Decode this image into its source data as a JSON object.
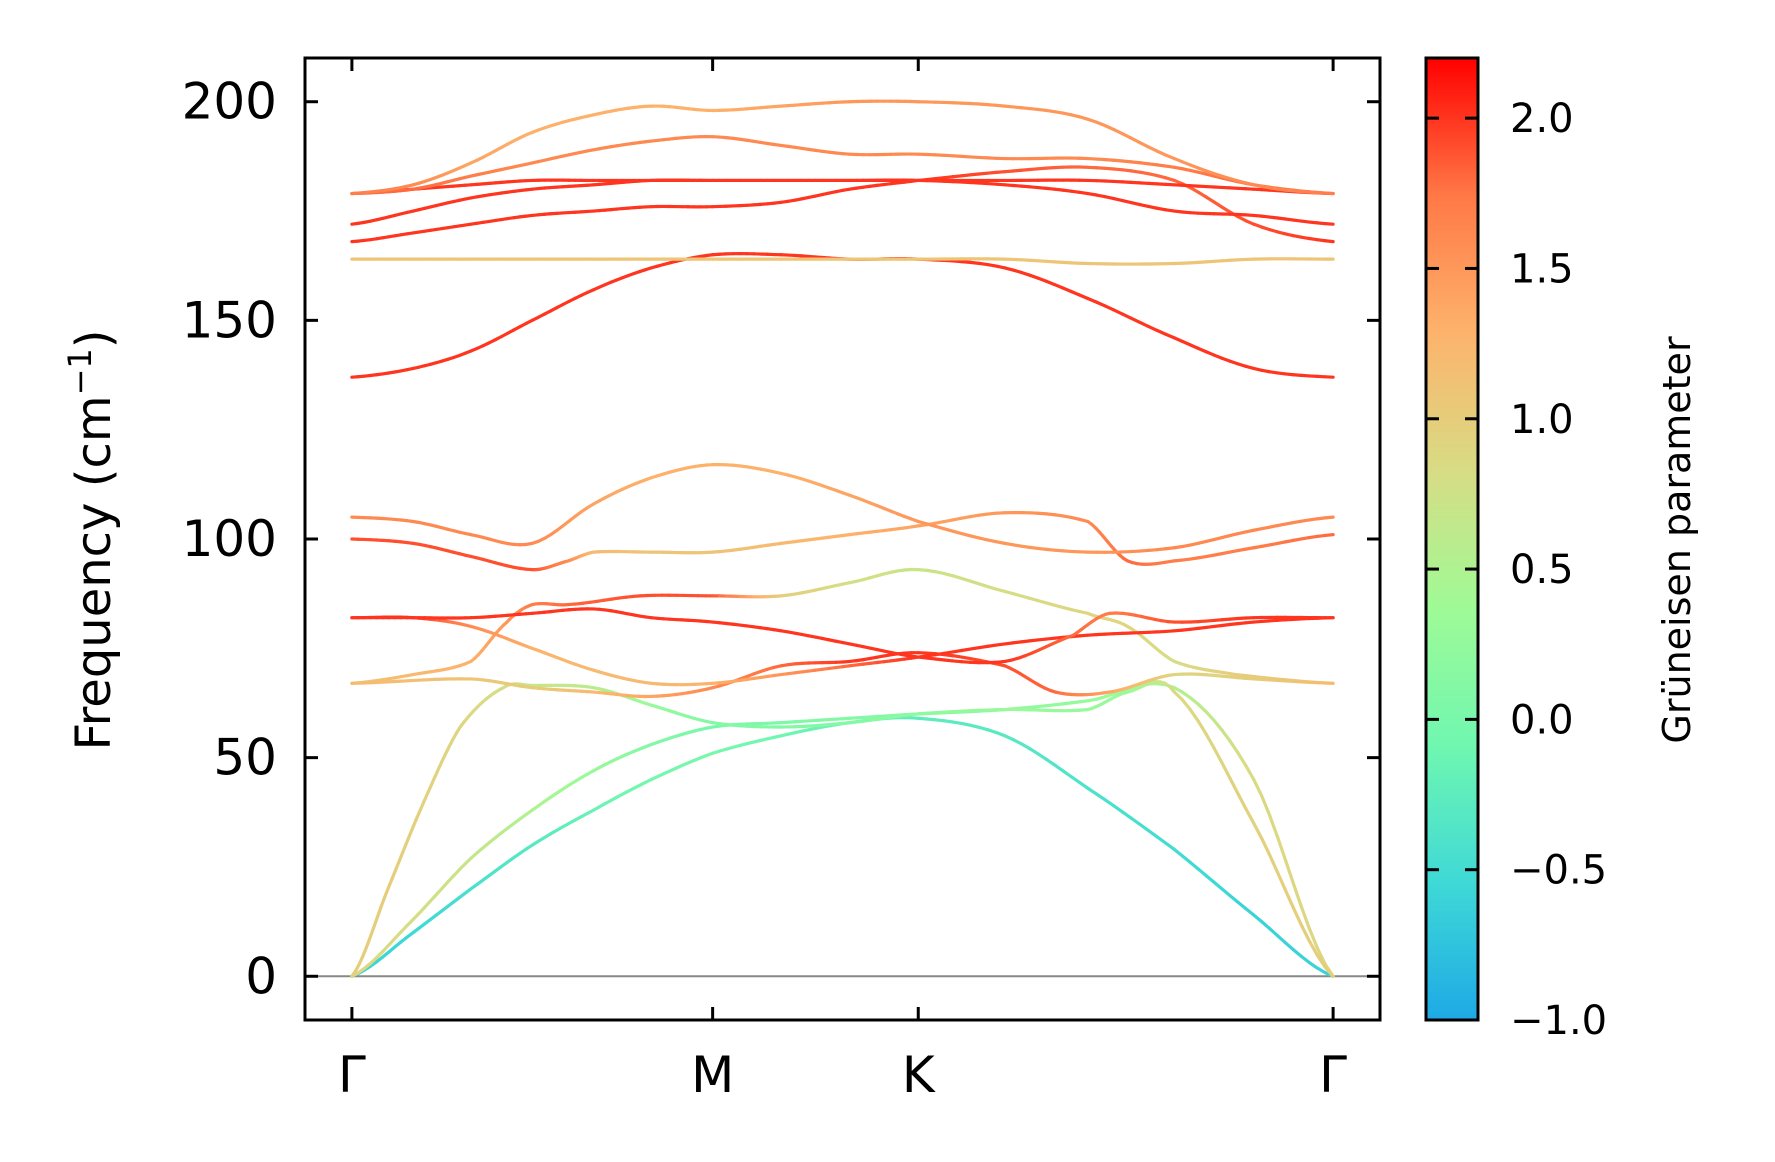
{
  "chart_data": {
    "type": "line",
    "ylabel": "Frequency (cm",
    "ylabel_sup": "−1",
    "ylabel_end": ")",
    "ylim": [
      -10,
      210
    ],
    "yticks": [
      0,
      50,
      100,
      150,
      200
    ],
    "ytick_labels": [
      "0",
      "50",
      "100",
      "150",
      "200"
    ],
    "x_segments": [
      0,
      1,
      1.57,
      2.72
    ],
    "xtick_labels": [
      "Γ",
      "M",
      "K",
      "Γ"
    ],
    "xlim": [
      -0.13,
      2.85
    ],
    "zero_line": true,
    "colorbar": {
      "label": "Grüneisen parameter",
      "min": -1.0,
      "max": 2.2,
      "ticks": [
        -1.0,
        -0.5,
        0.0,
        0.5,
        1.0,
        1.5,
        2.0
      ],
      "tick_labels": [
        "−1.0",
        "−0.5",
        "0.0",
        "0.5",
        "1.0",
        "1.5",
        "2.0"
      ],
      "colormap": "rainbow",
      "colors": [
        "#1ea9e6",
        "#3fd9d6",
        "#70f7b0",
        "#9ffa96",
        "#d8dc84",
        "#fdb36c",
        "#ff7846",
        "#ff0000"
      ]
    },
    "series": [
      {
        "x": [
          0,
          0.17,
          0.33,
          0.5,
          0.67,
          0.83,
          1,
          1.19,
          1.38,
          1.57,
          1.81,
          2.04,
          2.28,
          2.5,
          2.72
        ],
        "y": [
          0,
          10,
          20,
          30,
          38,
          45,
          51,
          55,
          58,
          59,
          55,
          43,
          29,
          14,
          0
        ],
        "g": [
          -0.6,
          -0.55,
          -0.45,
          -0.3,
          -0.15,
          -0.05,
          0,
          -0.1,
          -0.2,
          -0.25,
          -0.3,
          -0.4,
          -0.5,
          -0.6,
          -0.6
        ]
      },
      {
        "x": [
          0,
          0.17,
          0.33,
          0.5,
          0.67,
          0.83,
          1,
          1.19,
          1.38,
          1.57,
          1.81,
          2.04,
          2.28,
          2.5,
          2.72
        ],
        "y": [
          0,
          13,
          27,
          38,
          47,
          53,
          57,
          58,
          59,
          60,
          61,
          63,
          66,
          45,
          0
        ],
        "g": [
          0.9,
          0.8,
          0.7,
          0.5,
          0.3,
          0.1,
          0,
          0.05,
          0.1,
          0.1,
          0.2,
          0.3,
          0.5,
          0.85,
          0.9
        ]
      },
      {
        "x": [
          0,
          0.1,
          0.2,
          0.3,
          0.42,
          0.5,
          0.67,
          0.83,
          1,
          1.19,
          1.38,
          1.57,
          1.81,
          2.04,
          2.15,
          2.28,
          2.5,
          2.72
        ],
        "y": [
          0,
          20,
          40,
          57,
          66,
          66.5,
          66,
          62,
          58,
          57,
          58,
          60,
          61,
          61,
          65,
          65,
          35,
          0
        ],
        "g": [
          1.0,
          1.0,
          0.95,
          0.9,
          0.8,
          0.7,
          0.6,
          0.3,
          0.1,
          0.1,
          0.1,
          0.2,
          0.3,
          0.3,
          0.3,
          0.85,
          0.95,
          1.0
        ]
      },
      {
        "x": [
          0,
          0.17,
          0.33,
          0.43,
          0.5,
          0.6,
          0.8,
          1,
          1.19,
          1.38,
          1.57,
          1.81,
          2.04,
          2.15,
          2.28,
          2.45,
          2.72
        ],
        "y": [
          67,
          69,
          72,
          81,
          85,
          85,
          87,
          87,
          87,
          90,
          93,
          88,
          83,
          80,
          72,
          69,
          67
        ],
        "g": [
          1.1,
          1.2,
          1.3,
          1.5,
          1.7,
          1.8,
          1.9,
          1.9,
          1.0,
          0.8,
          0.7,
          0.8,
          0.9,
          0.9,
          0.8,
          1.0,
          1.1
        ]
      },
      {
        "x": [
          0,
          0.33,
          0.5,
          0.67,
          0.83,
          1,
          1.19,
          1.38,
          1.57,
          1.81,
          1.95,
          2.1,
          2.28,
          2.5,
          2.72
        ],
        "y": [
          67,
          68,
          66,
          65,
          64,
          66,
          71,
          72,
          74,
          71,
          65,
          65,
          69,
          68,
          67
        ],
        "g": [
          1.2,
          1.1,
          1.0,
          1.2,
          1.4,
          1.6,
          1.8,
          2.0,
          2.0,
          1.9,
          1.8,
          1.4,
          0.9,
          1.0,
          1.2
        ]
      },
      {
        "x": [
          0,
          0.17,
          0.33,
          0.5,
          0.67,
          0.83,
          1,
          1.19,
          1.38,
          1.57,
          1.81,
          2.04,
          2.28,
          2.5,
          2.72
        ],
        "y": [
          82,
          82,
          80,
          75,
          70,
          67,
          67,
          69,
          71,
          73,
          76,
          78,
          79,
          81,
          82
        ],
        "g": [
          2.0,
          2.0,
          1.6,
          1.3,
          1.2,
          1.2,
          1.3,
          1.5,
          1.8,
          2.0,
          2.0,
          2.0,
          2.0,
          2.0,
          2.0
        ]
      },
      {
        "x": [
          0,
          0.17,
          0.33,
          0.5,
          0.67,
          0.83,
          1,
          1.19,
          1.38,
          1.57,
          1.81,
          2.0,
          2.1,
          2.28,
          2.5,
          2.72
        ],
        "y": [
          82,
          82,
          82,
          83,
          84,
          82,
          81,
          79,
          76,
          73,
          72,
          78,
          83,
          81,
          82,
          82
        ],
        "g": [
          2.0,
          2.0,
          2.0,
          2.0,
          2.0,
          2.0,
          2.0,
          2.0,
          2.0,
          2.0,
          2.0,
          1.8,
          1.7,
          1.9,
          2.0,
          2.0
        ]
      },
      {
        "x": [
          0,
          0.17,
          0.33,
          0.5,
          0.6,
          0.67,
          0.83,
          1,
          1.19,
          1.38,
          1.57,
          1.81,
          2.04,
          2.15,
          2.28,
          2.5,
          2.72
        ],
        "y": [
          100,
          99,
          96,
          93,
          95,
          97,
          97,
          97,
          99,
          101,
          103,
          106,
          104,
          95,
          95,
          98,
          101
        ],
        "g": [
          1.9,
          1.9,
          1.9,
          1.9,
          1.6,
          1.2,
          1.1,
          1.1,
          1.2,
          1.3,
          1.4,
          1.5,
          1.6,
          1.8,
          1.7,
          1.7,
          1.8
        ]
      },
      {
        "x": [
          0,
          0.17,
          0.33,
          0.5,
          0.67,
          0.83,
          1,
          1.19,
          1.38,
          1.57,
          1.81,
          2.04,
          2.28,
          2.5,
          2.72
        ],
        "y": [
          105,
          104,
          101,
          99,
          108,
          114,
          117,
          115,
          110,
          104,
          99,
          97,
          98,
          102,
          105
        ],
        "g": [
          1.6,
          1.6,
          1.6,
          1.6,
          1.4,
          1.3,
          1.3,
          1.3,
          1.4,
          1.5,
          1.5,
          1.5,
          1.6,
          1.6,
          1.6
        ]
      },
      {
        "x": [
          0,
          0.17,
          0.33,
          0.5,
          0.67,
          0.83,
          1,
          1.19,
          1.38,
          1.57,
          1.81,
          2.04,
          2.28,
          2.5,
          2.72
        ],
        "y": [
          137,
          139,
          143,
          150,
          157,
          162,
          165,
          165,
          164,
          164,
          162,
          155,
          146,
          139,
          137
        ],
        "g": [
          2.0,
          2.0,
          2.0,
          2.0,
          2.0,
          2.0,
          2.0,
          2.0,
          2.0,
          2.0,
          2.0,
          2.0,
          2.0,
          2.0,
          2.0
        ]
      },
      {
        "x": [
          0,
          0.33,
          0.67,
          1,
          1.38,
          1.57,
          1.81,
          2.04,
          2.28,
          2.5,
          2.72
        ],
        "y": [
          164,
          164,
          164,
          164,
          164,
          164,
          164,
          163,
          163,
          164,
          164
        ],
        "g": [
          1.1,
          1.1,
          1.1,
          1.1,
          1.1,
          1.1,
          1.1,
          1.1,
          1.1,
          1.1,
          1.1
        ]
      },
      {
        "x": [
          0,
          0.17,
          0.33,
          0.5,
          0.67,
          0.83,
          1,
          1.19,
          1.38,
          1.57,
          1.81,
          2.04,
          2.28,
          2.5,
          2.72
        ],
        "y": [
          168,
          170,
          172,
          174,
          175,
          176,
          176,
          177,
          180,
          182,
          184,
          185,
          182,
          172,
          168
        ],
        "g": [
          2.0,
          2.0,
          2.0,
          2.0,
          2.0,
          2.0,
          2.0,
          2.0,
          2.0,
          2.0,
          1.9,
          1.8,
          1.8,
          1.9,
          2.0
        ]
      },
      {
        "x": [
          0,
          0.17,
          0.33,
          0.5,
          0.67,
          0.83,
          1,
          1.19,
          1.38,
          1.57,
          1.81,
          2.04,
          2.28,
          2.5,
          2.72
        ],
        "y": [
          172,
          175,
          178,
          180,
          181,
          182,
          182,
          182,
          182,
          182,
          181,
          179,
          175,
          174,
          172
        ],
        "g": [
          2.0,
          2.0,
          2.0,
          2.0,
          2.0,
          2.0,
          2.0,
          2.0,
          2.0,
          2.0,
          2.0,
          2.0,
          2.0,
          2.0,
          2.0
        ]
      },
      {
        "x": [
          0,
          0.17,
          0.33,
          0.5,
          0.67,
          0.83,
          1,
          1.19,
          1.38,
          1.57,
          1.81,
          2.04,
          2.28,
          2.5,
          2.72
        ],
        "y": [
          179,
          180,
          181,
          182,
          182,
          182,
          182,
          182,
          182,
          182,
          182,
          182,
          181,
          180,
          179
        ],
        "g": [
          2.0,
          2.0,
          2.0,
          2.0,
          2.0,
          2.0,
          2.0,
          2.0,
          2.0,
          2.0,
          2.0,
          2.0,
          2.0,
          2.0,
          2.0
        ]
      },
      {
        "x": [
          0,
          0.17,
          0.33,
          0.5,
          0.67,
          0.83,
          1,
          1.19,
          1.38,
          1.57,
          1.81,
          2.04,
          2.28,
          2.5,
          2.72
        ],
        "y": [
          179,
          180,
          183,
          186,
          189,
          191,
          192,
          190,
          188,
          188,
          187,
          187,
          185,
          181,
          179
        ],
        "g": [
          1.8,
          1.8,
          1.7,
          1.6,
          1.6,
          1.6,
          1.6,
          1.6,
          1.6,
          1.6,
          1.6,
          1.6,
          1.7,
          1.8,
          1.8
        ]
      },
      {
        "x": [
          0,
          0.17,
          0.33,
          0.5,
          0.67,
          0.83,
          1,
          1.19,
          1.38,
          1.57,
          1.81,
          2.04,
          2.28,
          2.5,
          2.72
        ],
        "y": [
          179,
          181,
          186,
          193,
          197,
          199,
          198,
          199,
          200,
          200,
          199,
          196,
          187,
          181,
          179
        ],
        "g": [
          1.7,
          1.6,
          1.4,
          1.3,
          1.3,
          1.3,
          1.3,
          1.4,
          1.5,
          1.5,
          1.5,
          1.5,
          1.5,
          1.6,
          1.7
        ]
      }
    ]
  }
}
